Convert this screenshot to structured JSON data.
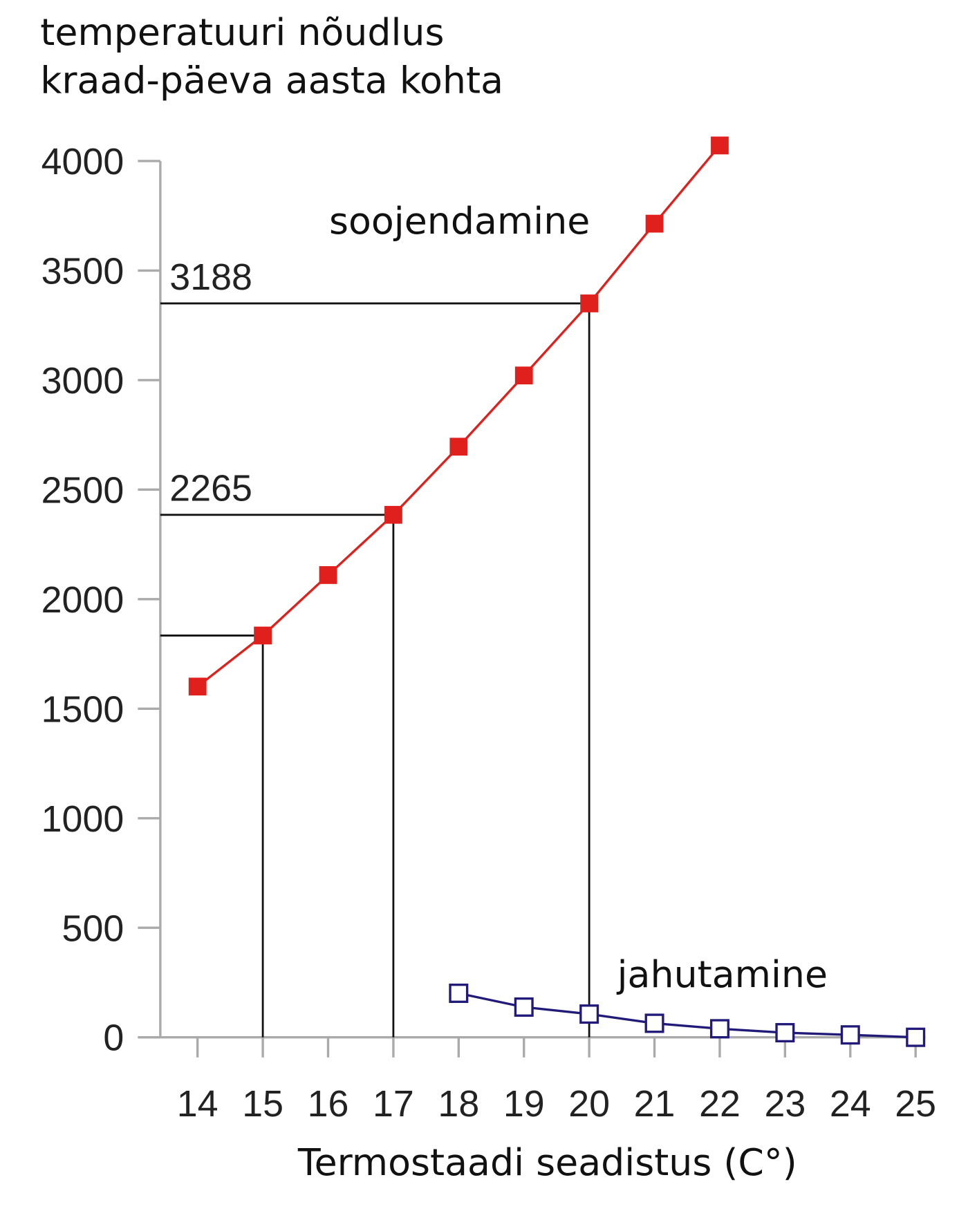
{
  "chart_data": {
    "type": "line",
    "ylabel": [
      "temperatuuri nõudlus",
      "kraad-päeva aasta kohta"
    ],
    "xlabel": "Termostaadi seadistus (C°)",
    "x": [
      14,
      15,
      16,
      17,
      18,
      19,
      20,
      21,
      22,
      23,
      24,
      25
    ],
    "series": [
      {
        "name": "soojendamine",
        "color": "#e0201c",
        "marker": "filled",
        "values": [
          1601,
          1834,
          2110,
          2385,
          2696,
          3021,
          3350,
          3714,
          4071,
          null,
          null,
          null
        ]
      },
      {
        "name": "jahutamine",
        "color": "#221a78",
        "marker": "open",
        "values": [
          null,
          null,
          null,
          null,
          201,
          138,
          106,
          64,
          39,
          21,
          11,
          0
        ]
      }
    ],
    "guides": [
      {
        "x": 15
      },
      {
        "x": 17,
        "label": "2265"
      },
      {
        "x": 20,
        "label": "3188"
      }
    ],
    "xlim": [
      13.43,
      25.15
    ],
    "xticks": [
      14,
      15,
      16,
      17,
      18,
      19,
      20,
      21,
      22,
      23,
      24,
      25
    ],
    "ylim": [
      0,
      4000
    ],
    "yticks": [
      0,
      500,
      1000,
      1500,
      2000,
      2500,
      3000,
      3500,
      4000
    ],
    "grid": false
  }
}
